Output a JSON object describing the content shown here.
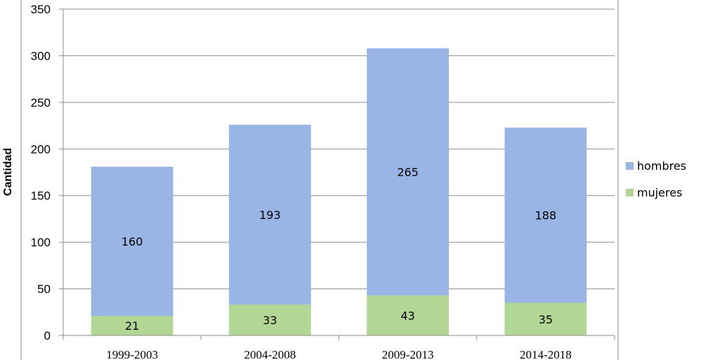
{
  "chart_data": {
    "type": "bar",
    "stacked": true,
    "categories": [
      "1999-2003",
      "2004-2008",
      "2009-2013",
      "2014-2018"
    ],
    "series": [
      {
        "name": "mujeres",
        "values": [
          21,
          33,
          43,
          35
        ],
        "color": "#b2d794"
      },
      {
        "name": "hombres",
        "values": [
          160,
          193,
          265,
          188
        ],
        "color": "#98b5e5"
      }
    ],
    "ylabel": "Cantidad",
    "xlabel": "",
    "ylim": [
      0,
      350
    ],
    "yticks": [
      0,
      50,
      100,
      150,
      200,
      250,
      300,
      350
    ],
    "grid": true,
    "legend_position": "right",
    "legend_order": [
      "hombres",
      "mujeres"
    ]
  }
}
